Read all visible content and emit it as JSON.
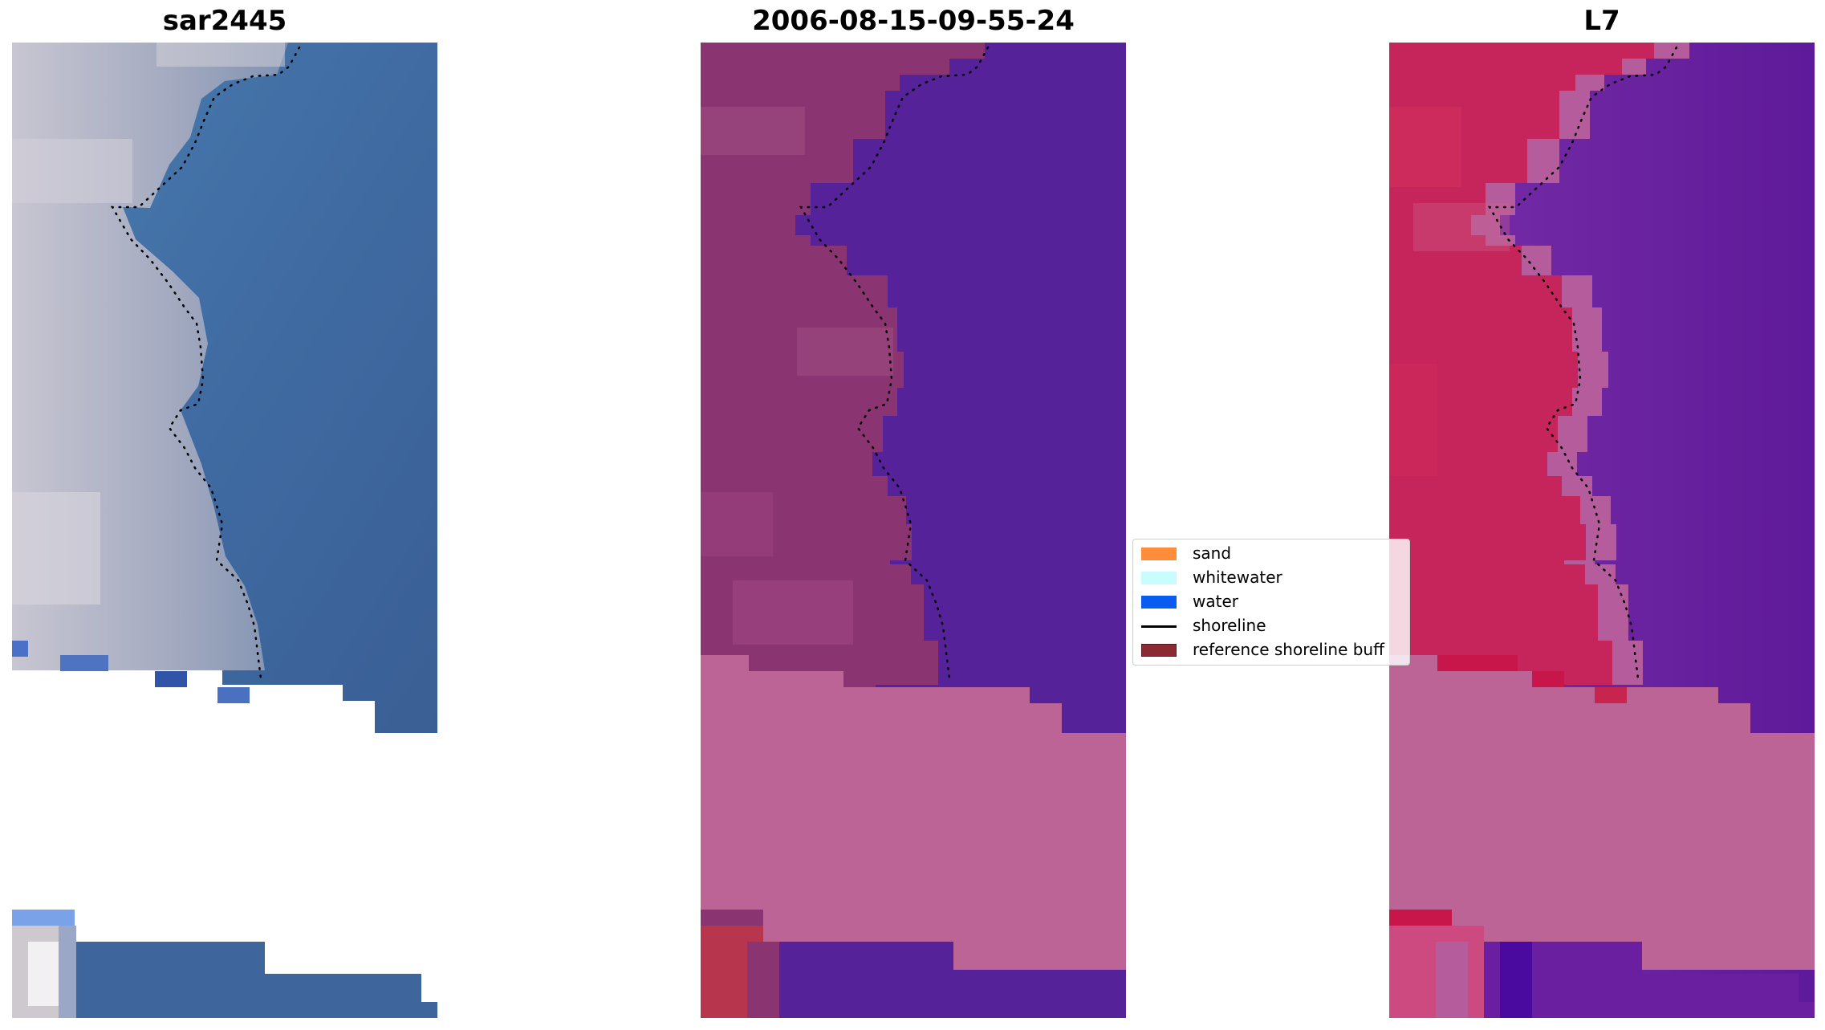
{
  "panels": [
    {
      "title": "sar2445"
    },
    {
      "title": "2006-08-15-09-55-24"
    },
    {
      "title": "L7"
    }
  ],
  "legend": {
    "items": [
      {
        "label": "sand",
        "color": "#ff8c3b"
      },
      {
        "label": "whitewater",
        "color": "#c8fcff"
      },
      {
        "label": "water",
        "color": "#0a5cf0"
      },
      {
        "label": "shoreline",
        "color": "#000000"
      },
      {
        "label": "reference shoreline buff",
        "color": "#8b2a33"
      }
    ]
  },
  "colors": {
    "rgb_land": "#a4acc0",
    "rgb_water": "#3e68a0",
    "classified_land": "#8a3572",
    "classified_water": "#56229a",
    "buffer_fill": "#bd6496",
    "index_land": "#c5255a",
    "index_water": "#6a20a0"
  }
}
